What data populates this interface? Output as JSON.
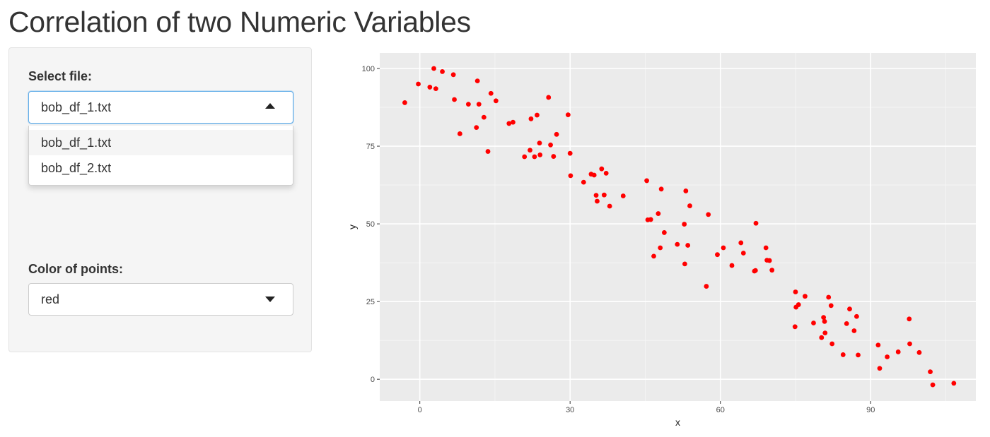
{
  "page": {
    "title": "Correlation of two Numeric Variables"
  },
  "sidebar": {
    "file_select": {
      "label": "Select file:",
      "value": "bob_df_1.txt",
      "options": [
        "bob_df_1.txt",
        "bob_df_2.txt"
      ],
      "open": true
    },
    "color_select": {
      "label": "Color of points:",
      "value": "red"
    }
  },
  "chart_data": {
    "type": "scatter",
    "xlabel": "x",
    "ylabel": "y",
    "xlim": [
      -8,
      111
    ],
    "ylim": [
      -7,
      105
    ],
    "xticks": [
      0,
      30,
      60,
      90
    ],
    "yticks": [
      0,
      25,
      50,
      75,
      100
    ],
    "point_color": "#ff0000",
    "panel_background": "#ebebeb",
    "grid": true,
    "points": [
      [
        -3,
        89
      ],
      [
        -0.3,
        95
      ],
      [
        2,
        94
      ],
      [
        2.8,
        100
      ],
      [
        3.2,
        93.5
      ],
      [
        4.5,
        99
      ],
      [
        6.7,
        98
      ],
      [
        6.9,
        90
      ],
      [
        8,
        79
      ],
      [
        9.7,
        88.5
      ],
      [
        11.3,
        81
      ],
      [
        11.5,
        96
      ],
      [
        11.8,
        88.5
      ],
      [
        12.8,
        84.3
      ],
      [
        13.6,
        73.3
      ],
      [
        14.2,
        92
      ],
      [
        15.2,
        89.6
      ],
      [
        17.8,
        82.3
      ],
      [
        18.6,
        82.7
      ],
      [
        20.9,
        71.6
      ],
      [
        22,
        73.7
      ],
      [
        22.2,
        83.8
      ],
      [
        22.9,
        71.6
      ],
      [
        23.4,
        85
      ],
      [
        23.9,
        76
      ],
      [
        24,
        72.2
      ],
      [
        25.7,
        90.7
      ],
      [
        26.1,
        75.4
      ],
      [
        26.7,
        71.7
      ],
      [
        27.3,
        78.8
      ],
      [
        29.6,
        85.1
      ],
      [
        30,
        72.7
      ],
      [
        30.1,
        65.5
      ],
      [
        32.7,
        63.4
      ],
      [
        34.2,
        66
      ],
      [
        34.8,
        65.7
      ],
      [
        35.2,
        59.2
      ],
      [
        35.4,
        57.3
      ],
      [
        36.3,
        67.7
      ],
      [
        36.8,
        59.3
      ],
      [
        37.2,
        66.3
      ],
      [
        37.9,
        55.7
      ],
      [
        40.6,
        59
      ],
      [
        45.3,
        63.9
      ],
      [
        45.5,
        51.3
      ],
      [
        46.1,
        51.4
      ],
      [
        46.7,
        39.6
      ],
      [
        47.6,
        53.3
      ],
      [
        48,
        42.3
      ],
      [
        48.2,
        61.2
      ],
      [
        48.8,
        47.2
      ],
      [
        51.4,
        43.4
      ],
      [
        52.8,
        49.9
      ],
      [
        52.9,
        37.1
      ],
      [
        53.1,
        60.6
      ],
      [
        53.5,
        43.1
      ],
      [
        53.9,
        55.8
      ],
      [
        57.2,
        29.9
      ],
      [
        57.6,
        53
      ],
      [
        59.4,
        40.1
      ],
      [
        60.6,
        42.3
      ],
      [
        62.3,
        36.6
      ],
      [
        64.1,
        43.9
      ],
      [
        64.6,
        40.6
      ],
      [
        66.8,
        34.8
      ],
      [
        67,
        35
      ],
      [
        67.1,
        50.2
      ],
      [
        69.1,
        42.3
      ],
      [
        69.3,
        38.3
      ],
      [
        69.8,
        38.2
      ],
      [
        70.3,
        35.1
      ],
      [
        74.9,
        16.9
      ],
      [
        75,
        28.1
      ],
      [
        75.1,
        23.2
      ],
      [
        75.6,
        24
      ],
      [
        76.9,
        26.7
      ],
      [
        78.6,
        18.1
      ],
      [
        80.2,
        13.4
      ],
      [
        80.6,
        19.9
      ],
      [
        80.8,
        18.6
      ],
      [
        80.9,
        14.9
      ],
      [
        81.6,
        26.4
      ],
      [
        82.1,
        23.7
      ],
      [
        82.3,
        11.4
      ],
      [
        84.5,
        7.9
      ],
      [
        85.2,
        17.9
      ],
      [
        85.8,
        22.6
      ],
      [
        86.7,
        15.6
      ],
      [
        87.2,
        20.2
      ],
      [
        87.5,
        7.8
      ],
      [
        91.5,
        11
      ],
      [
        91.8,
        3.5
      ],
      [
        93.3,
        7.2
      ],
      [
        95.5,
        8.8
      ],
      [
        97.7,
        19.4
      ],
      [
        97.8,
        11.4
      ],
      [
        99.7,
        8.6
      ],
      [
        101.9,
        2.4
      ],
      [
        102.4,
        -1.8
      ],
      [
        106.6,
        -1.3
      ]
    ]
  }
}
